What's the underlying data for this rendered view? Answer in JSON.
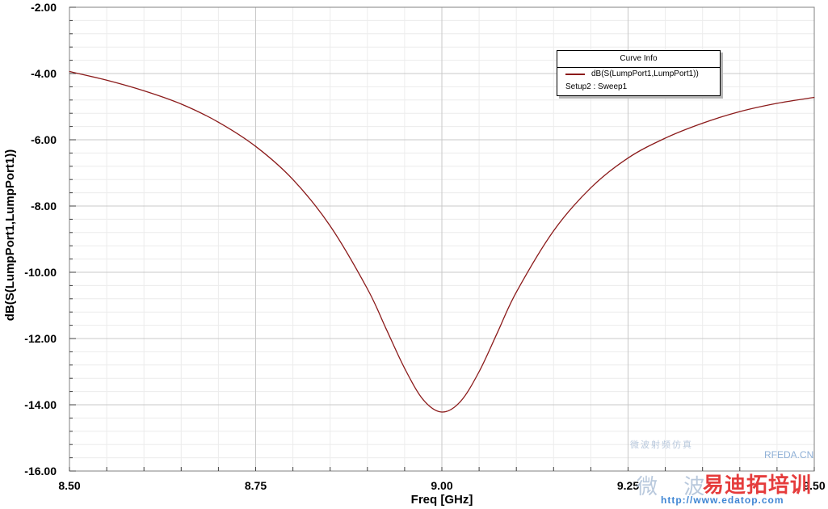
{
  "chart_data": {
    "type": "line",
    "title": "",
    "xlabel": "Freq [GHz]",
    "ylabel": "dB(S(LumpPort1,LumpPort1))",
    "xlim": [
      8.5,
      9.5
    ],
    "ylim": [
      -16.0,
      -2.0
    ],
    "x_ticks": [
      8.5,
      8.75,
      9.0,
      9.25,
      9.5
    ],
    "x_tick_labels": [
      "8.50",
      "8.75",
      "9.00",
      "9.25",
      "9.50"
    ],
    "y_ticks": [
      -16,
      -14,
      -12,
      -10,
      -8,
      -6,
      -4,
      -2
    ],
    "y_tick_labels": [
      "-16.00",
      "-14.00",
      "-12.00",
      "-10.00",
      "-8.00",
      "-6.00",
      "-4.00",
      "-2.00"
    ],
    "grid": true,
    "series": [
      {
        "name": "dB(S(LumpPort1,LumpPort1))",
        "color": "#8b1a1a",
        "x": [
          8.5,
          8.55,
          8.6,
          8.65,
          8.7,
          8.75,
          8.8,
          8.85,
          8.9,
          8.925,
          8.95,
          8.975,
          9.0,
          9.025,
          9.05,
          9.075,
          9.1,
          9.15,
          9.2,
          9.25,
          9.3,
          9.35,
          9.4,
          9.45,
          9.5
        ],
        "y": [
          -3.94,
          -4.2,
          -4.52,
          -4.92,
          -5.47,
          -6.2,
          -7.2,
          -8.6,
          -10.5,
          -11.7,
          -12.9,
          -13.85,
          -14.22,
          -13.9,
          -13.0,
          -11.8,
          -10.6,
          -8.75,
          -7.45,
          -6.55,
          -5.95,
          -5.5,
          -5.15,
          -4.9,
          -4.72
        ]
      }
    ],
    "legend": {
      "title": "Curve Info",
      "entries": [
        "dB(S(LumpPort1,LumpPort1))"
      ],
      "subtitle": "Setup2 : Sweep1",
      "placement": "top-right"
    }
  },
  "watermark": {
    "small": "微波射频仿真",
    "rfeda": "RFEDA.CN",
    "big": "微 波",
    "brand": "易迪拓培训",
    "url": "http://www.edatop.com"
  }
}
